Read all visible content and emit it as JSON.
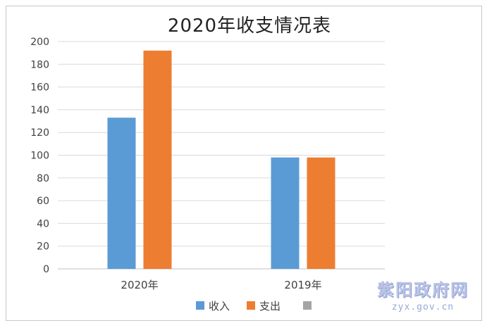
{
  "chart_data": {
    "type": "bar",
    "title": "2020年收支情况表",
    "categories": [
      "2020年",
      "2019年"
    ],
    "series": [
      {
        "name": "收入",
        "color": "#5b9bd5",
        "values": [
          133,
          98
        ]
      },
      {
        "name": "支出",
        "color": "#ed7d31",
        "values": [
          192,
          98
        ]
      },
      {
        "name": "",
        "color": "#a5a5a5",
        "values": [
          null,
          null
        ]
      }
    ],
    "ylim": [
      0,
      200
    ],
    "yticks": [
      0,
      20,
      40,
      60,
      80,
      100,
      120,
      140,
      160,
      180,
      200
    ],
    "grid": true,
    "legend": "bottom"
  },
  "watermark": {
    "name": "紫阳政府网",
    "url": "zyx.gov.cn"
  }
}
